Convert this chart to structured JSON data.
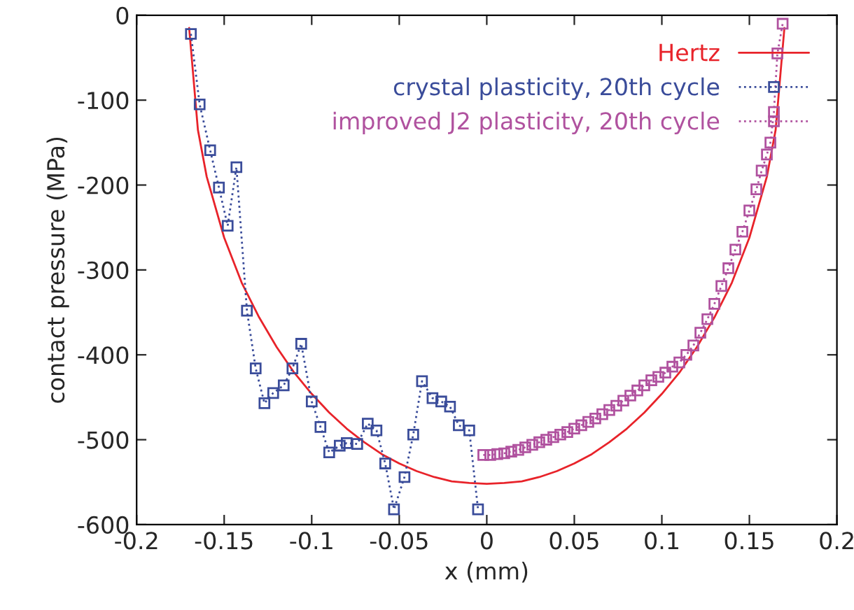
{
  "chart_data": {
    "type": "line",
    "xlabel": "x (mm)",
    "ylabel": "contact pressure (MPa)",
    "xlim": [
      -0.2,
      0.2
    ],
    "xticks": [
      -0.2,
      -0.15,
      -0.1,
      -0.05,
      0,
      0.05,
      0.1,
      0.15,
      0.2
    ],
    "ylim": [
      -600,
      0
    ],
    "yticks": [
      -600,
      -500,
      -400,
      -300,
      -200,
      -100,
      0
    ],
    "grid": false,
    "legend": "top right",
    "series": [
      {
        "name": "Hertz",
        "color": "#e8232a",
        "marker": "none",
        "line_style": "solid",
        "x": [
          -0.17,
          -0.165,
          -0.16,
          -0.15,
          -0.14,
          -0.13,
          -0.12,
          -0.11,
          -0.1,
          -0.09,
          -0.08,
          -0.07,
          -0.06,
          -0.05,
          -0.04,
          -0.03,
          -0.02,
          -0.01,
          0,
          0.01,
          0.02,
          0.03,
          0.04,
          0.05,
          0.06,
          0.07,
          0.08,
          0.09,
          0.1,
          0.11,
          0.12,
          0.13,
          0.14,
          0.15,
          0.16,
          0.165,
          0.17
        ],
        "values": [
          -15,
          -135,
          -190,
          -262,
          -315,
          -356,
          -391,
          -421,
          -446,
          -468,
          -487,
          -503,
          -517,
          -528,
          -537,
          -544,
          -549,
          -551,
          -552,
          -551,
          -549,
          -544,
          -537,
          -528,
          -517,
          -503,
          -487,
          -468,
          -446,
          -421,
          -391,
          -356,
          -315,
          -262,
          -190,
          -135,
          -15
        ]
      },
      {
        "name": "crystal plasticity, 20th cycle",
        "color": "#3a4c9a",
        "marker": "square",
        "line_style": "dotted",
        "x": [
          -0.169,
          -0.164,
          -0.158,
          -0.153,
          -0.148,
          -0.143,
          -0.137,
          -0.132,
          -0.127,
          -0.122,
          -0.116,
          -0.111,
          -0.106,
          -0.1,
          -0.095,
          -0.09,
          -0.084,
          -0.08,
          -0.074,
          -0.068,
          -0.063,
          -0.058,
          -0.053,
          -0.047,
          -0.042,
          -0.037,
          -0.031,
          -0.026,
          -0.021,
          -0.016,
          -0.01,
          -0.005
        ],
        "values": [
          -22,
          -105,
          -159,
          -203,
          -248,
          -179,
          -348,
          -416,
          -457,
          -445,
          -436,
          -416,
          -387,
          -455,
          -485,
          -515,
          -507,
          -504,
          -505,
          -481,
          -489,
          -528,
          -582,
          -544,
          -494,
          -431,
          -451,
          -455,
          -461,
          -483,
          -489,
          -582
        ]
      },
      {
        "name": "improved J2 plasticity, 20th cycle",
        "color": "#b0529f",
        "marker": "square",
        "line_style": "dotted",
        "x": [
          -0.002,
          0.002,
          0.006,
          0.01,
          0.014,
          0.018,
          0.022,
          0.026,
          0.03,
          0.034,
          0.038,
          0.042,
          0.046,
          0.05,
          0.054,
          0.058,
          0.062,
          0.066,
          0.07,
          0.074,
          0.078,
          0.082,
          0.086,
          0.09,
          0.094,
          0.098,
          0.102,
          0.106,
          0.11,
          0.114,
          0.118,
          0.122,
          0.126,
          0.13,
          0.134,
          0.138,
          0.142,
          0.146,
          0.15,
          0.154,
          0.157,
          0.16,
          0.162,
          0.164,
          0.166,
          0.169
        ],
        "values": [
          -518,
          -518,
          -517,
          -516,
          -514,
          -512,
          -509,
          -506,
          -503,
          -500,
          -497,
          -494,
          -491,
          -487,
          -483,
          -479,
          -475,
          -470,
          -465,
          -460,
          -454,
          -448,
          -442,
          -436,
          -430,
          -426,
          -421,
          -414,
          -409,
          -400,
          -389,
          -374,
          -358,
          -340,
          -319,
          -298,
          -276,
          -255,
          -230,
          -205,
          -183,
          -164,
          -150,
          -114,
          -45,
          -10
        ]
      }
    ]
  }
}
